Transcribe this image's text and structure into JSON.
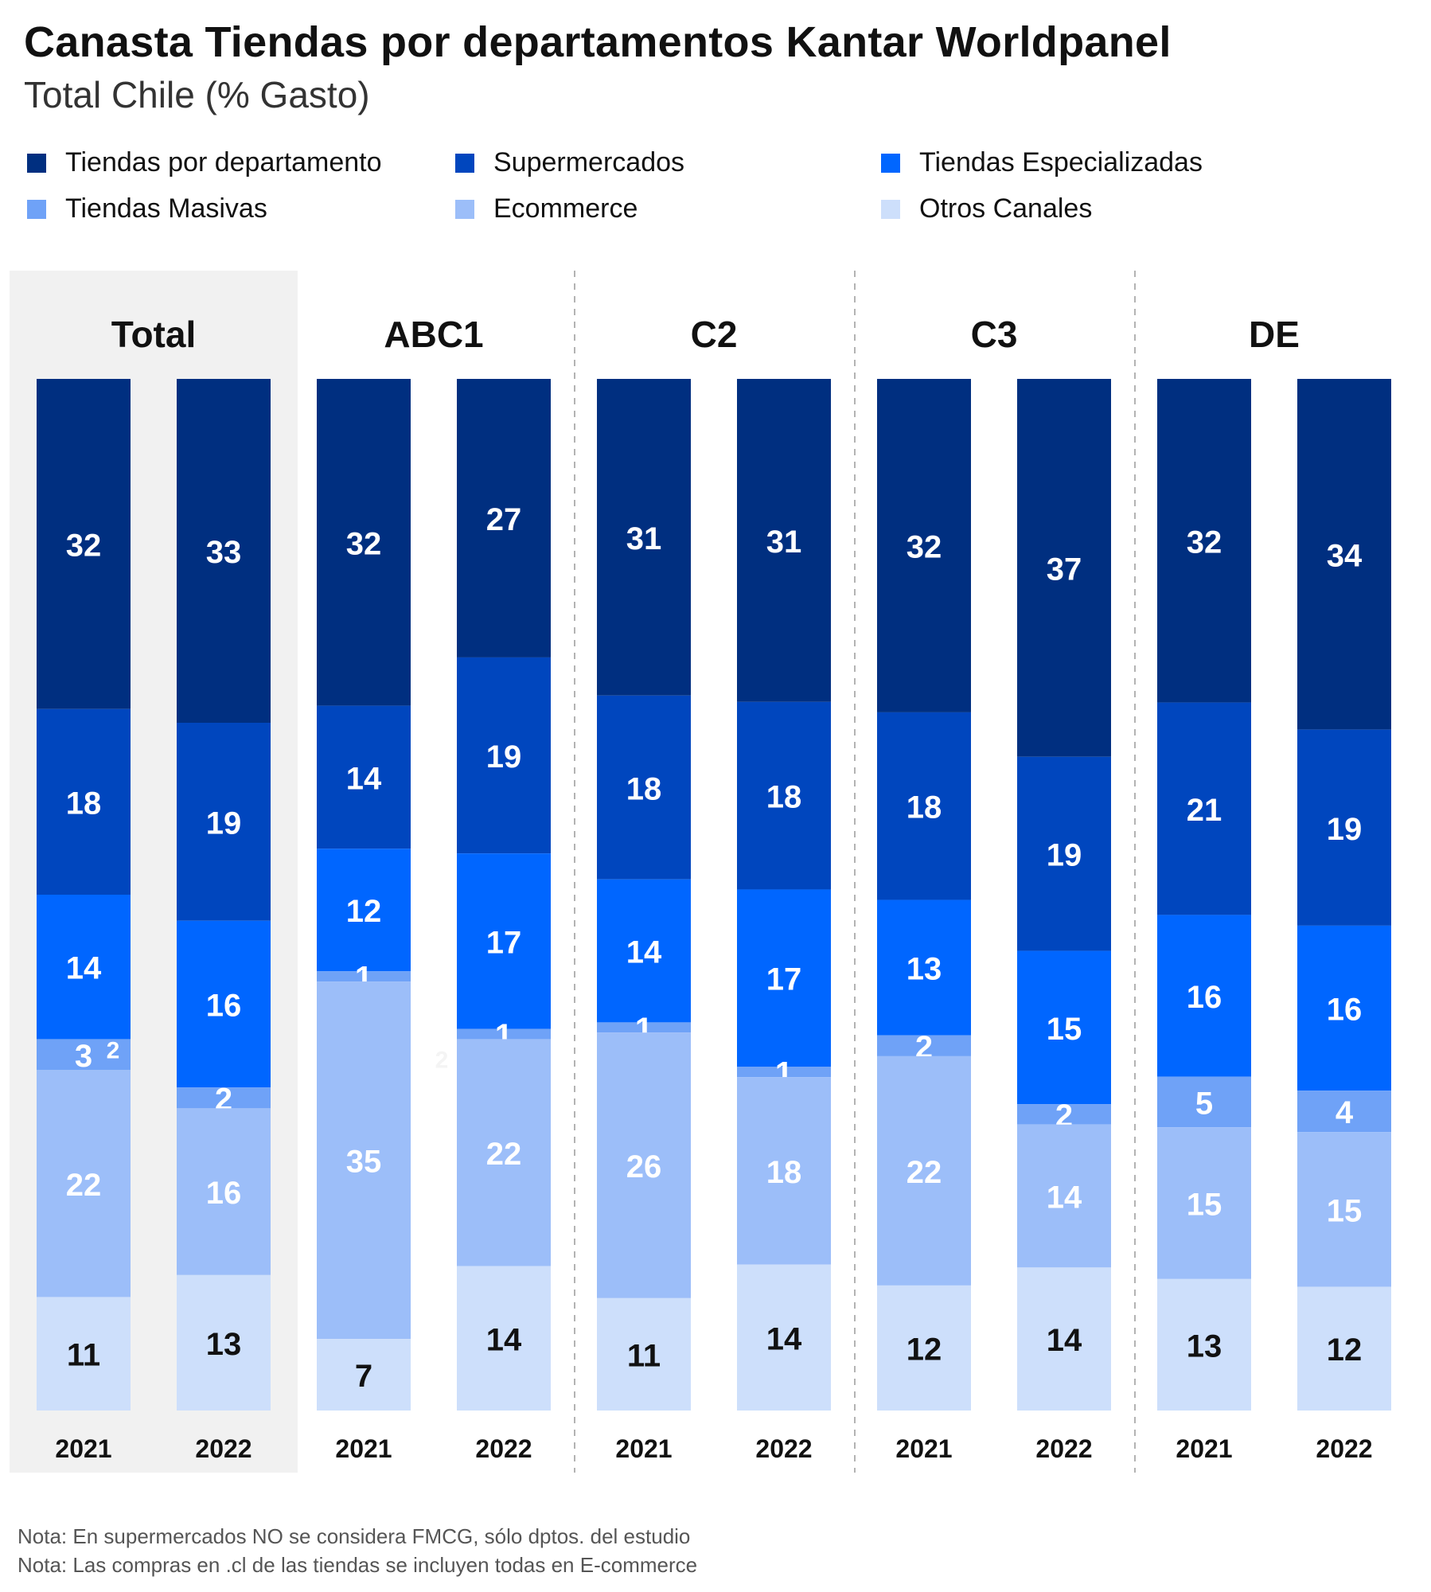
{
  "title": "Canasta Tiendas por departamentos Kantar Worldpanel",
  "subtitle": "Total Chile (% Gasto)",
  "colors": {
    "tiendas_por_departamento": "#002f80",
    "supermercados": "#0046be",
    "tiendas_especializadas": "#0066ff",
    "tiendas_masivas": "#6fa2f7",
    "ecommerce": "#9cbef9",
    "otros_canales": "#cddffb",
    "total_panel_bg": "#f1f1f1",
    "divider": "#b3b3b3",
    "dark_label": "#111111",
    "light_label": "#ffffff"
  },
  "chart_data": {
    "type": "bar",
    "stacked": true,
    "percent_stacked": true,
    "legend_position": "top",
    "groups": [
      "Total",
      "ABC1",
      "C2",
      "C3",
      "DE"
    ],
    "years": [
      "2021",
      "2022"
    ],
    "series": [
      {
        "name": "Tiendas por departamento",
        "color": "#002f80",
        "values": [
          [
            32,
            33
          ],
          [
            32,
            27
          ],
          [
            31,
            31
          ],
          [
            32,
            37
          ],
          [
            32,
            34
          ]
        ]
      },
      {
        "name": "Supermercados",
        "color": "#0046be",
        "values": [
          [
            18,
            19
          ],
          [
            14,
            19
          ],
          [
            18,
            18
          ],
          [
            18,
            19
          ],
          [
            21,
            19
          ]
        ]
      },
      {
        "name": "Tiendas Especializadas",
        "color": "#0066ff",
        "values": [
          [
            14,
            16
          ],
          [
            12,
            17
          ],
          [
            14,
            17
          ],
          [
            13,
            15
          ],
          [
            16,
            16
          ]
        ]
      },
      {
        "name": "Tiendas Masivas",
        "color": "#6fa2f7",
        "values": [
          [
            3,
            2
          ],
          [
            1,
            1
          ],
          [
            1,
            1
          ],
          [
            2,
            2
          ],
          [
            5,
            4
          ]
        ]
      },
      {
        "name": "Ecommerce",
        "color": "#9cbef9",
        "values": [
          [
            22,
            16
          ],
          [
            35,
            22
          ],
          [
            26,
            18
          ],
          [
            22,
            14
          ],
          [
            15,
            15
          ]
        ]
      },
      {
        "name": "Otros Canales",
        "color": "#cddffb",
        "values": [
          [
            11,
            13
          ],
          [
            7,
            14
          ],
          [
            11,
            14
          ],
          [
            12,
            14
          ],
          [
            13,
            12
          ]
        ]
      }
    ],
    "extra_labels": [
      "2",
      "2"
    ]
  },
  "notes": [
    "Nota: En supermercados NO se considera FMCG, sólo dptos. del estudio",
    "Nota: Las compras en .cl de las tiendas se incluyen todas en E-commerce"
  ]
}
